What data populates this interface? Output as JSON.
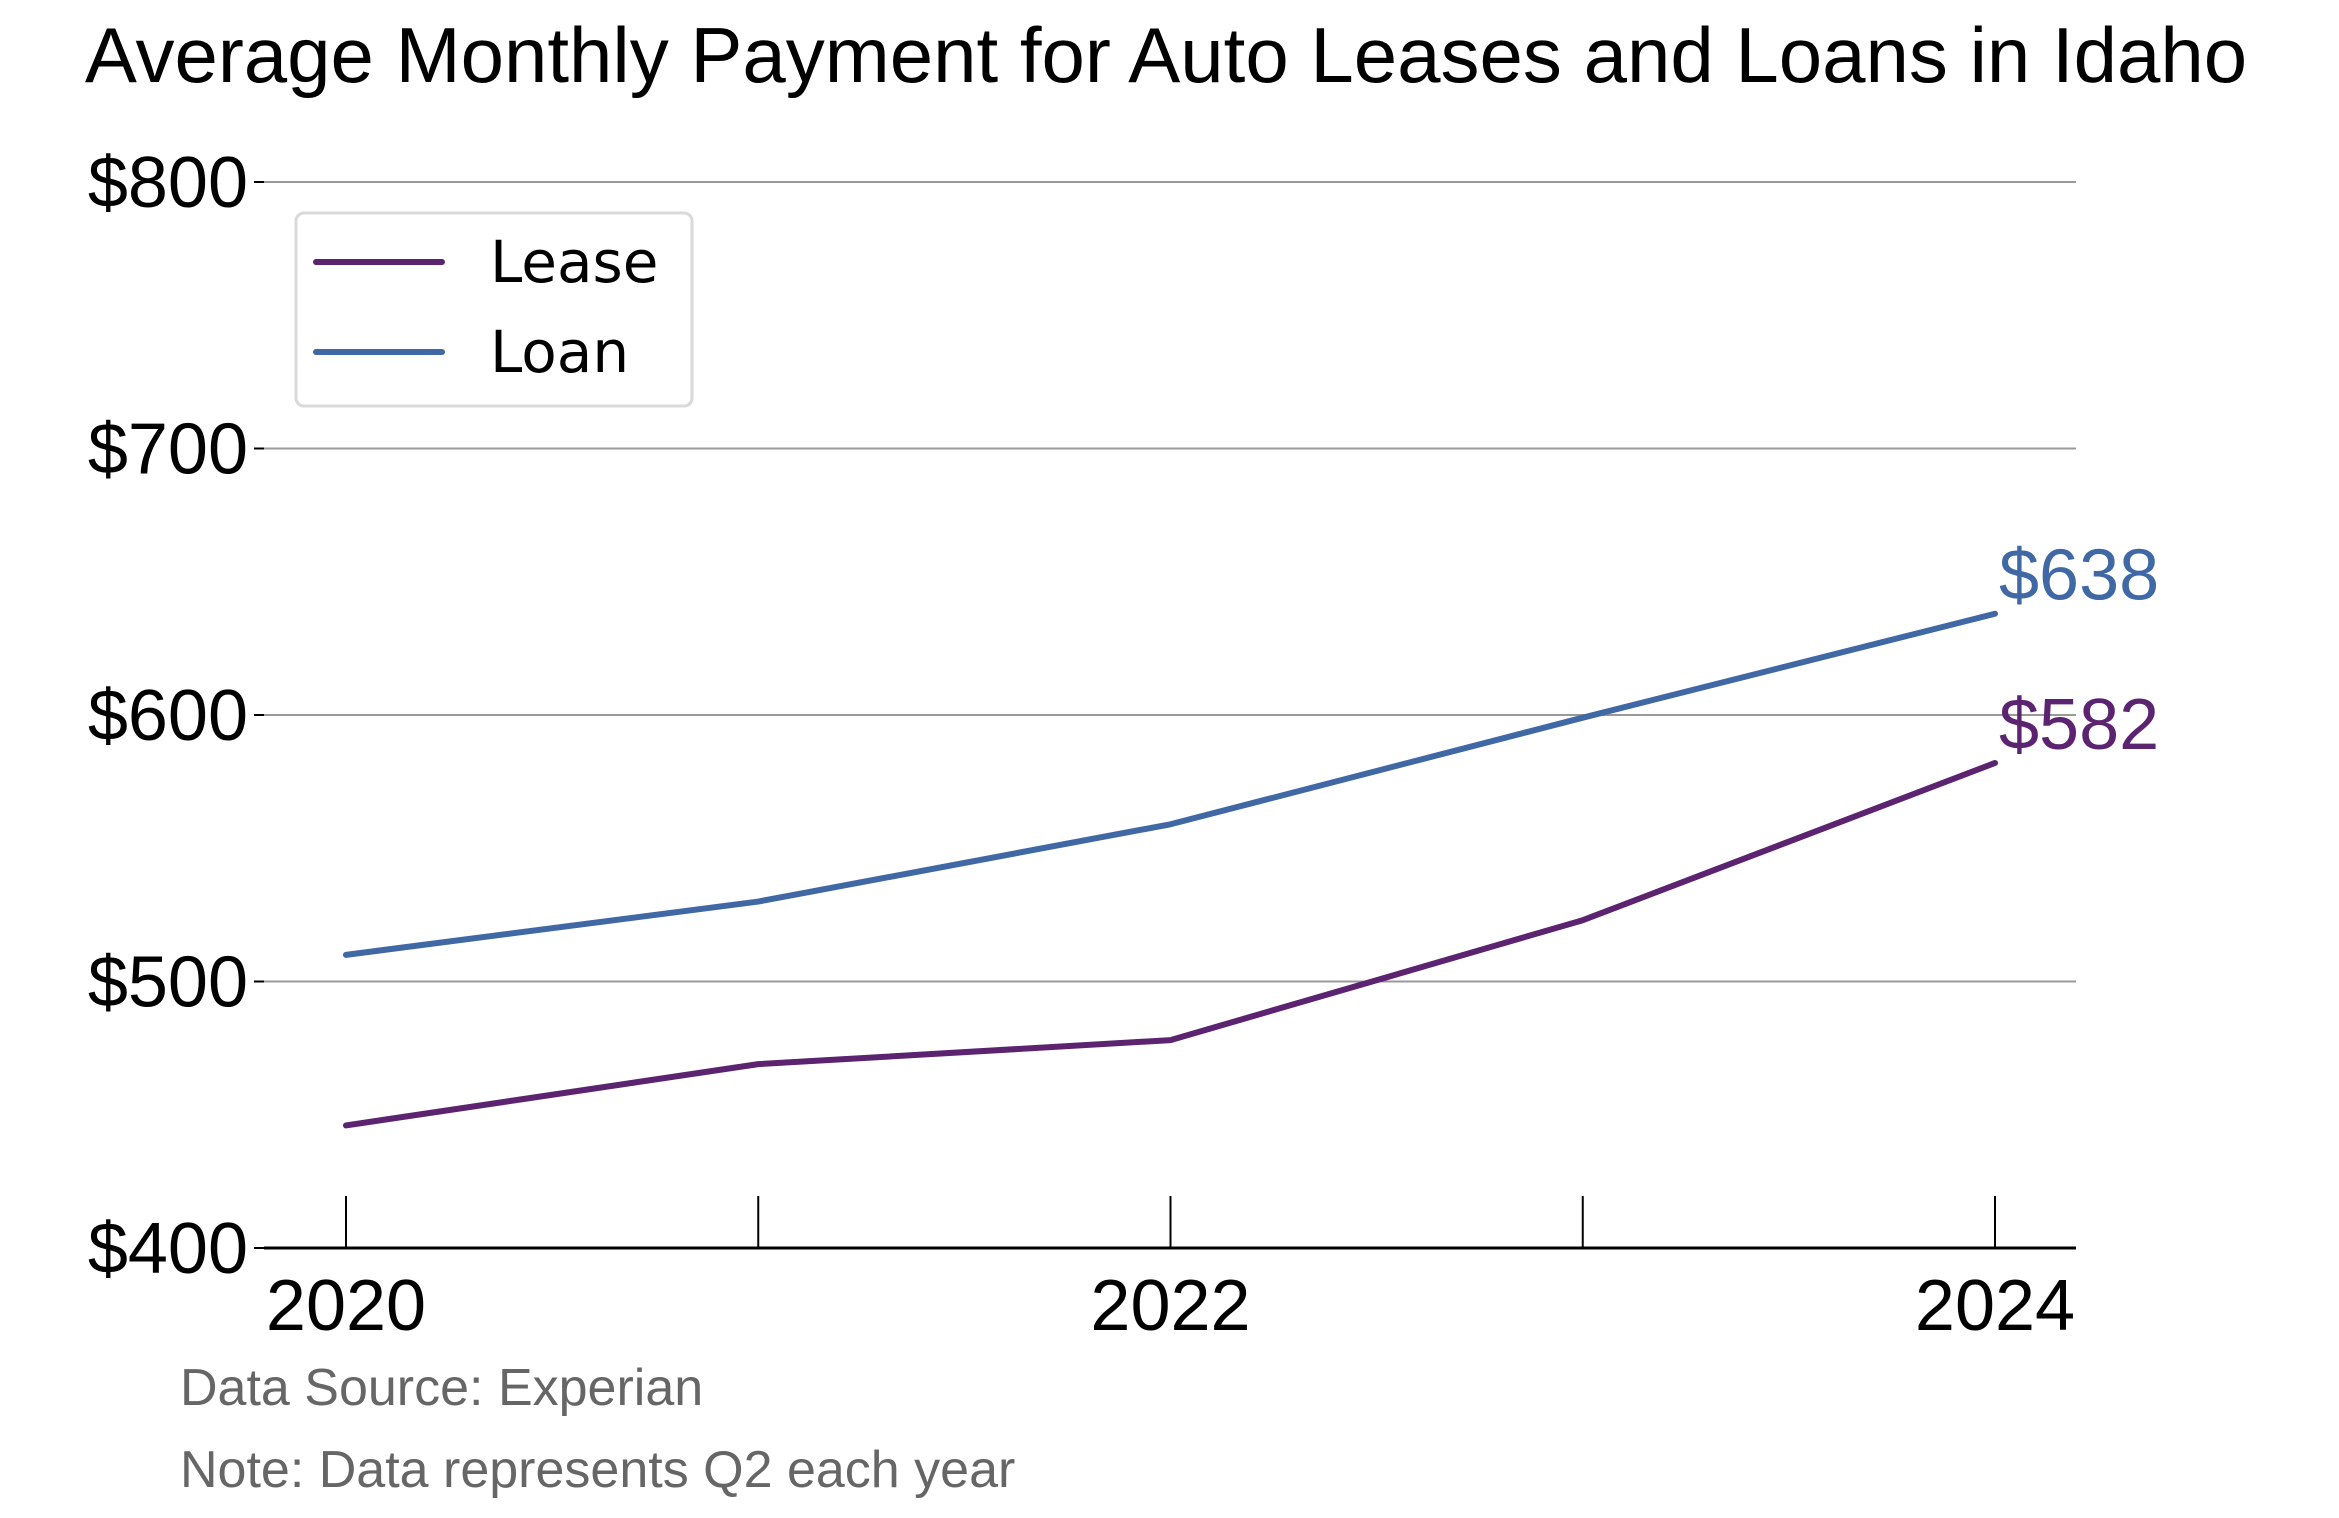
{
  "chart_data": {
    "type": "line",
    "title": "Average Monthly Payment for Auto Leases and Loans in Idaho",
    "x": [
      2020,
      2021,
      2022,
      2023,
      2024
    ],
    "xticks": [
      "2020",
      "2022",
      "2024"
    ],
    "xtick_values": [
      2020,
      2022,
      2024
    ],
    "ylim": [
      400,
      800
    ],
    "yticks": [
      "$400",
      "$500",
      "$600",
      "$700",
      "$800"
    ],
    "ytick_values": [
      400,
      500,
      600,
      700,
      800
    ],
    "grid": true,
    "legend_position": "top-left",
    "series": [
      {
        "name": "Lease",
        "color": "#5b2370",
        "values": [
          446,
          469,
          478,
          523,
          582
        ],
        "end_label": "$582"
      },
      {
        "name": "Loan",
        "color": "#3f68a4",
        "values": [
          510,
          530,
          559,
          599,
          638
        ],
        "end_label": "$638"
      }
    ],
    "notes": [
      "Data Source: Experian",
      "Note: Data represents Q2 each year"
    ]
  }
}
